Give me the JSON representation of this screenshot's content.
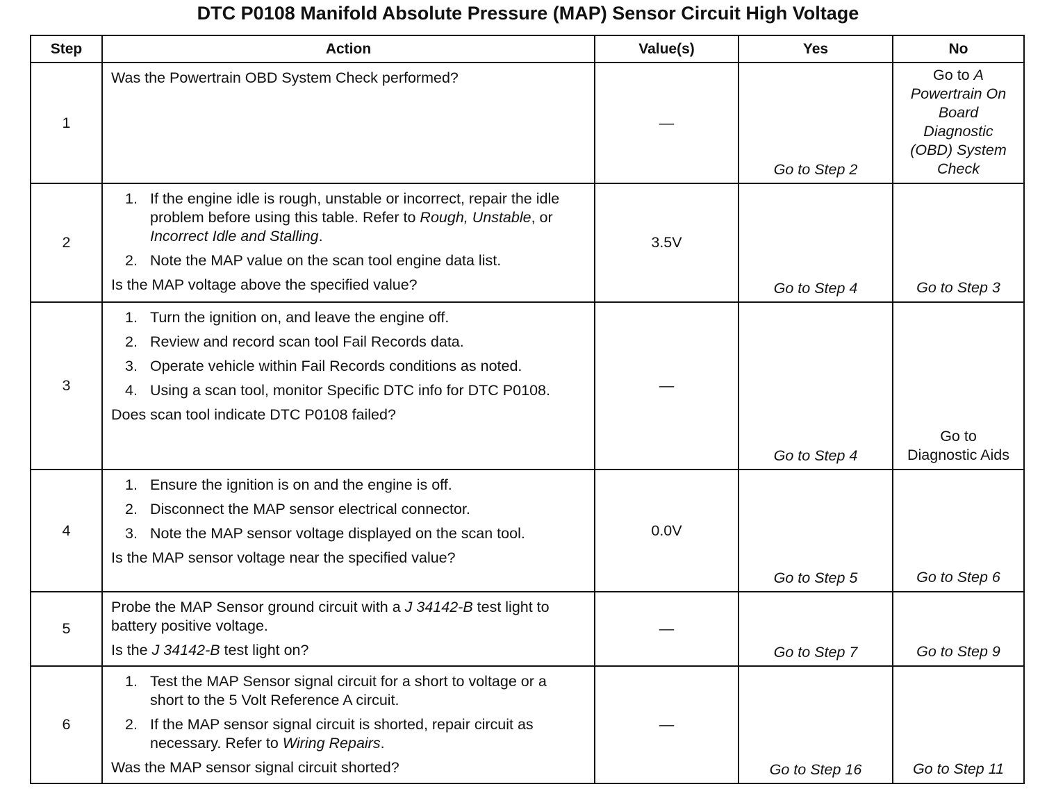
{
  "title": "DTC P0108 Manifold Absolute Pressure (MAP) Sensor Circuit High Voltage",
  "headers": [
    "Step",
    "Action",
    "Value(s)",
    "Yes",
    "No"
  ],
  "rows": [
    {
      "step": "1",
      "value": "—",
      "yes": "Go to Step 2",
      "no": [
        {
          "t": "Go to ",
          "i": false
        },
        {
          "t": "A Powertrain On Board Diagnostic (OBD) System Check",
          "i": true
        }
      ],
      "action": [
        {
          "type": "p",
          "segs": [
            {
              "t": "Was the Powertrain OBD System Check performed?"
            }
          ]
        }
      ],
      "tall": true
    },
    {
      "step": "2",
      "value": "3.5V",
      "yes": "Go to Step 4",
      "no": [
        {
          "t": "Go to Step 3",
          "i": true
        }
      ],
      "action": [
        {
          "type": "li",
          "num": "1.",
          "segs": [
            {
              "t": "If the engine idle is rough, unstable or incorrect, repair the idle problem before using this table. Refer to "
            },
            {
              "t": "Rough, Unstable",
              "i": true
            },
            {
              "t": ", or "
            },
            {
              "t": "Incorrect Idle and Stalling",
              "i": true
            },
            {
              "t": "."
            }
          ]
        },
        {
          "type": "li",
          "num": "2.",
          "segs": [
            {
              "t": "Note the MAP value on the scan tool engine data list."
            }
          ]
        },
        {
          "type": "q",
          "segs": [
            {
              "t": "Is the MAP voltage above the specified value?"
            }
          ]
        }
      ]
    },
    {
      "step": "3",
      "value": "—",
      "yes": "Go to Step 4",
      "no": [
        {
          "t": "Go to Diagnostic Aids",
          "i": false
        }
      ],
      "action": [
        {
          "type": "li",
          "num": "1.",
          "segs": [
            {
              "t": "Turn the ignition on, and leave the engine off."
            }
          ]
        },
        {
          "type": "li",
          "num": "2.",
          "segs": [
            {
              "t": "Review and record scan tool Fail Records data."
            }
          ]
        },
        {
          "type": "li",
          "num": "3.",
          "segs": [
            {
              "t": "Operate vehicle within Fail Records conditions as noted."
            }
          ]
        },
        {
          "type": "li",
          "num": "4.",
          "segs": [
            {
              "t": "Using a scan tool, monitor Specific DTC info for DTC P0108."
            }
          ]
        },
        {
          "type": "q",
          "segs": [
            {
              "t": "Does scan tool indicate DTC P0108 failed?"
            }
          ]
        }
      ]
    },
    {
      "step": "4",
      "value": "0.0V",
      "yes": "Go to Step 5",
      "no": [
        {
          "t": "Go to Step 6",
          "i": true
        }
      ],
      "action": [
        {
          "type": "li",
          "num": "1.",
          "segs": [
            {
              "t": "Ensure the ignition is on and the engine is off."
            }
          ]
        },
        {
          "type": "li",
          "num": "2.",
          "segs": [
            {
              "t": "Disconnect the MAP sensor electrical connector."
            }
          ]
        },
        {
          "type": "li",
          "num": "3.",
          "segs": [
            {
              "t": "Note the MAP sensor voltage displayed on the scan tool."
            }
          ]
        },
        {
          "type": "q",
          "segs": [
            {
              "t": "Is the MAP sensor voltage near the specified value?"
            }
          ]
        }
      ]
    },
    {
      "step": "5",
      "value": "—",
      "yes": "Go to Step 7",
      "no": [
        {
          "t": "Go to Step 9",
          "i": true
        }
      ],
      "action": [
        {
          "type": "p",
          "segs": [
            {
              "t": "Probe the MAP Sensor ground circuit with a "
            },
            {
              "t": "J 34142-B",
              "i": true
            },
            {
              "t": " test light to battery positive voltage."
            }
          ]
        },
        {
          "type": "q",
          "segs": [
            {
              "t": "Is the "
            },
            {
              "t": "J 34142-B",
              "i": true
            },
            {
              "t": " test light on?"
            }
          ]
        }
      ]
    },
    {
      "step": "6",
      "value": "—",
      "yes": "Go to Step 16",
      "no": [
        {
          "t": "Go to Step 11",
          "i": true
        }
      ],
      "action": [
        {
          "type": "li",
          "num": "1.",
          "segs": [
            {
              "t": "Test the MAP Sensor signal circuit for a short to voltage or a short to the 5 Volt Reference A circuit."
            }
          ]
        },
        {
          "type": "li",
          "num": "2.",
          "segs": [
            {
              "t": "If the MAP sensor signal circuit is shorted, repair circuit as necessary. Refer to "
            },
            {
              "t": "Wiring Repairs",
              "i": true
            },
            {
              "t": "."
            }
          ]
        },
        {
          "type": "q",
          "segs": [
            {
              "t": "Was the MAP sensor signal circuit shorted?"
            }
          ]
        }
      ]
    }
  ]
}
